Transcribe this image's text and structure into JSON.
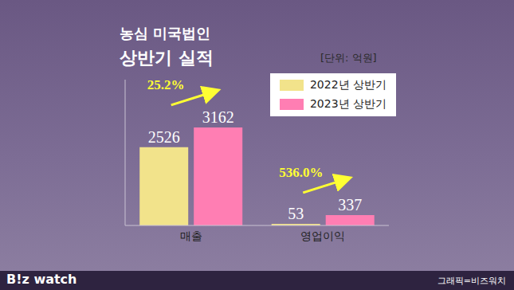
{
  "chart_data": {
    "type": "bar",
    "title": "농심 미국법인",
    "subtitle": "상반기 실적",
    "note": "[단위: 억원]",
    "source": "그래픽=비즈워치",
    "logo": "B!z watch",
    "categories": [
      "매출",
      "영업이익"
    ],
    "series": [
      {
        "name": "2022년 상반기",
        "color": "#f2e38b",
        "values": [
          2526,
          53
        ]
      },
      {
        "name": "2023년 상반기",
        "color": "#ff7eb3",
        "values": [
          3162,
          337
        ]
      }
    ],
    "annotations": [
      {
        "text": "25.2%",
        "category": "매출"
      },
      {
        "text": "536.0%",
        "category": "영업이익"
      }
    ],
    "ylim": [
      0,
      4700
    ],
    "legend": "upper right",
    "data_labels": true,
    "tick_labels": "x",
    "grid": false
  }
}
